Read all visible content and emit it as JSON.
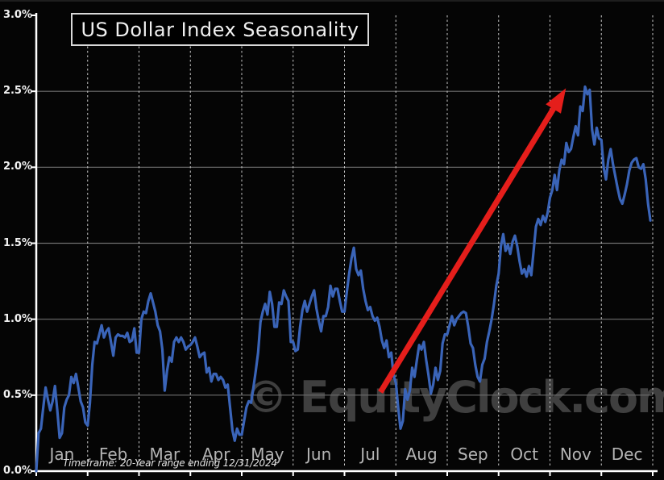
{
  "window": {
    "background_color": "#050505"
  },
  "chart_data": {
    "type": "line",
    "title": "US Dollar Index Seasonality",
    "footnote": "Timeframe: 20-Year range ending 12/31/2024",
    "watermark": "© EquityClock.com",
    "y_axis": {
      "tick_labels": [
        "3.0%",
        "2.5%",
        "2.0%",
        "1.5%",
        "1.0%",
        "0.5%",
        "0.0%"
      ],
      "tick_values": [
        3.0,
        2.5,
        2.0,
        1.5,
        1.0,
        0.5,
        0.0
      ],
      "ylim": [
        0.0,
        3.0
      ],
      "unit": "percent cumulative gain"
    },
    "x_axis": {
      "categories": [
        "Jan",
        "Feb",
        "Mar",
        "Apr",
        "May",
        "Jun",
        "Jul",
        "Aug",
        "Sep",
        "Oct",
        "Nov",
        "Dec"
      ],
      "xlim_months": [
        0,
        12
      ]
    },
    "grid": {
      "horizontal_lines_at": [
        2.5,
        2.0,
        1.5,
        1.0,
        0.5
      ],
      "horizontal_color": "#6f6f6f",
      "vertical_dashed_at_month_boundaries": true,
      "vertical_color": "#c9c9c9"
    },
    "series": [
      {
        "name": "US Dollar Index 20-Year Seasonality",
        "color": "#3a64b8",
        "line_width": 3.2,
        "monthly_values": [
          [
            0.0,
            0.25,
            0.28,
            0.42,
            0.55,
            0.47,
            0.4,
            0.46,
            0.56,
            0.4,
            0.22,
            0.25,
            0.42,
            0.47,
            0.5,
            0.62,
            0.58,
            0.64,
            0.55,
            0.46,
            0.42,
            0.32
          ],
          [
            0.3,
            0.45,
            0.7,
            0.85,
            0.84,
            0.9,
            0.96,
            0.88,
            0.92,
            0.94,
            0.85,
            0.76,
            0.88,
            0.9,
            0.89,
            0.89,
            0.88,
            0.91,
            0.85,
            0.86,
            0.94,
            0.78
          ],
          [
            0.78,
            1.0,
            1.05,
            1.04,
            1.12,
            1.17,
            1.11,
            1.05,
            0.96,
            0.92,
            0.8,
            0.53,
            0.66,
            0.75,
            0.72,
            0.85,
            0.88,
            0.85,
            0.88,
            0.85,
            0.8,
            0.82
          ],
          [
            0.83,
            0.85,
            0.88,
            0.82,
            0.75,
            0.77,
            0.78,
            0.65,
            0.68,
            0.59,
            0.64,
            0.64,
            0.6,
            0.62,
            0.6,
            0.55,
            0.57,
            0.42,
            0.27,
            0.2,
            0.28,
            0.24
          ],
          [
            0.24,
            0.33,
            0.42,
            0.46,
            0.45,
            0.55,
            0.66,
            0.78,
            0.98,
            1.05,
            1.1,
            1.03,
            1.18,
            1.1,
            0.95,
            0.95,
            1.11,
            1.1,
            1.19,
            1.15,
            1.12,
            0.85
          ],
          [
            0.85,
            0.79,
            0.8,
            0.95,
            1.06,
            1.12,
            1.05,
            1.1,
            1.15,
            1.19,
            1.07,
            0.99,
            0.92,
            1.02,
            1.02,
            1.08,
            1.22,
            1.15,
            1.2,
            1.2,
            1.12,
            1.05
          ],
          [
            1.05,
            1.18,
            1.3,
            1.4,
            1.47,
            1.33,
            1.29,
            1.32,
            1.2,
            1.12,
            1.06,
            1.08,
            1.02,
            0.99,
            1.01,
            0.95,
            0.86,
            0.81,
            0.86,
            0.75,
            0.78,
            0.63
          ],
          [
            0.58,
            0.42,
            0.28,
            0.33,
            0.54,
            0.47,
            0.53,
            0.68,
            0.62,
            0.73,
            0.83,
            0.8,
            0.85,
            0.73,
            0.63,
            0.51,
            0.57,
            0.68,
            0.6,
            0.66,
            0.84,
            0.9
          ],
          [
            0.9,
            0.96,
            1.02,
            0.96,
            1.0,
            1.02,
            1.04,
            1.05,
            1.04,
            0.95,
            0.84,
            0.81,
            0.7,
            0.62,
            0.59,
            0.7,
            0.74,
            0.85,
            0.92,
            1.0,
            1.1,
            1.22
          ],
          [
            1.3,
            1.48,
            1.56,
            1.45,
            1.49,
            1.43,
            1.51,
            1.55,
            1.48,
            1.38,
            1.3,
            1.33,
            1.28,
            1.35,
            1.29,
            1.45,
            1.61,
            1.66,
            1.62,
            1.68,
            1.64,
            1.7
          ],
          [
            1.8,
            1.85,
            1.95,
            1.85,
            1.98,
            2.05,
            2.02,
            2.16,
            2.1,
            2.12,
            2.2,
            2.27,
            2.21,
            2.4,
            2.37,
            2.53,
            2.48,
            2.51,
            2.25,
            2.15,
            2.26,
            2.19
          ],
          [
            2.18,
            2.0,
            1.92,
            2.05,
            2.12,
            2.02,
            1.94,
            1.86,
            1.79,
            1.76,
            1.82,
            1.89,
            1.98,
            2.03,
            2.05,
            2.06,
            2.0,
            1.99,
            2.02,
            1.92,
            1.76,
            1.65
          ]
        ]
      }
    ],
    "annotation_arrow": {
      "from_month": 6.7,
      "from_value": 0.52,
      "to_month": 10.31,
      "to_value": 2.52,
      "color": "#e51e1b",
      "shaft_width": 7
    },
    "axis_color": "#ffffff",
    "legend": "none"
  }
}
